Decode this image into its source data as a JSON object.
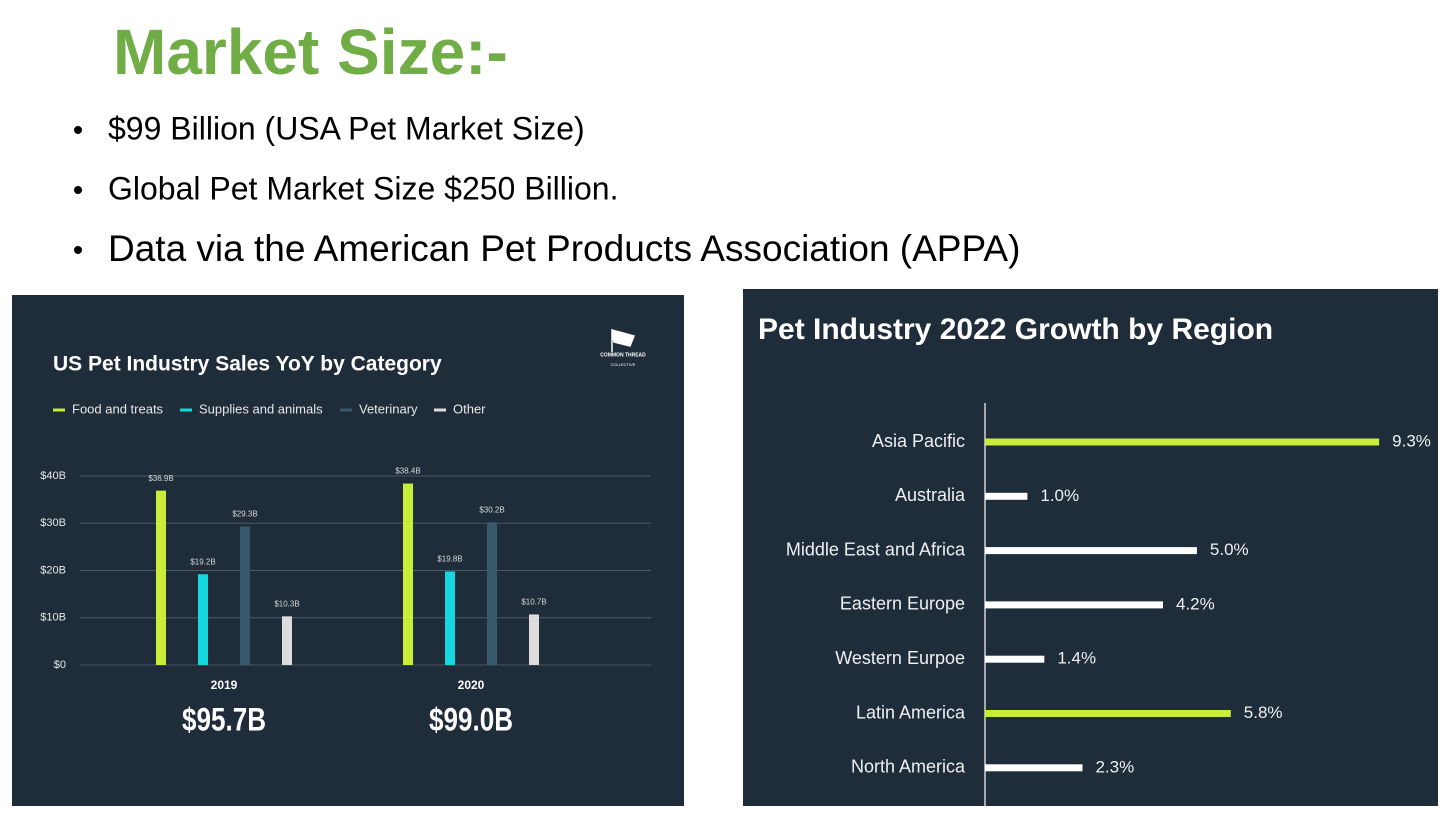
{
  "title": "Market Size:-",
  "bullets": [
    "$99 Billion (USA Pet Market Size)",
    "Global Pet Market Size $250 Billion.",
    "Data via the American Pet Products Association (APPA)"
  ],
  "chart_data": [
    {
      "type": "bar",
      "title": "US Pet Industry Sales YoY by Category",
      "logo": "COMMON THREAD",
      "logo_sub": "COLLECTIVE",
      "categories": [
        "2019",
        "2020"
      ],
      "series": [
        {
          "name": "Food and treats",
          "color": "#c9ee3a",
          "values": [
            36.9,
            38.4
          ],
          "value_labels": [
            "$36.9B",
            "$38.4B"
          ]
        },
        {
          "name": "Supplies and animals",
          "color": "#16d6e0",
          "values": [
            19.2,
            19.8
          ],
          "value_labels": [
            "$19.2B",
            "$19.8B"
          ]
        },
        {
          "name": "Veterinary",
          "color": "#36596b",
          "values": [
            29.3,
            30.2
          ],
          "value_labels": [
            "$29.3B",
            "$30.2B"
          ]
        },
        {
          "name": "Other",
          "color": "#dcdcdc",
          "values": [
            10.3,
            10.7
          ],
          "value_labels": [
            "$10.3B",
            "$10.7B"
          ]
        }
      ],
      "totals": [
        95.7,
        99.0
      ],
      "total_labels": [
        "$95.7B",
        "$99.0B"
      ],
      "ylim": [
        0,
        40
      ],
      "yticks": [
        {
          "value": 0,
          "label": "$0"
        },
        {
          "value": 10,
          "label": "$10B"
        },
        {
          "value": 20,
          "label": "$20B"
        },
        {
          "value": 30,
          "label": "$30B"
        },
        {
          "value": 40,
          "label": "$40B"
        }
      ],
      "grid": true
    },
    {
      "type": "hbar",
      "title": "Pet Industry 2022 Growth by Region",
      "categories": [
        "Asia Pacific",
        "Australia",
        "Middle East and Africa",
        "Eastern Europe",
        "Western Eurpoe",
        "Latin America",
        "North America"
      ],
      "values": [
        9.3,
        1.0,
        5.0,
        4.2,
        1.4,
        5.8,
        2.3
      ],
      "value_labels": [
        "9.3%",
        "1.0%",
        "5.0%",
        "4.2%",
        "1.4%",
        "5.8%",
        "2.3%"
      ],
      "colors": [
        "#c9ee3a",
        "#ffffff",
        "#ffffff",
        "#ffffff",
        "#ffffff",
        "#c9ee3a",
        "#ffffff"
      ],
      "xlim": [
        0,
        10.5
      ]
    }
  ]
}
